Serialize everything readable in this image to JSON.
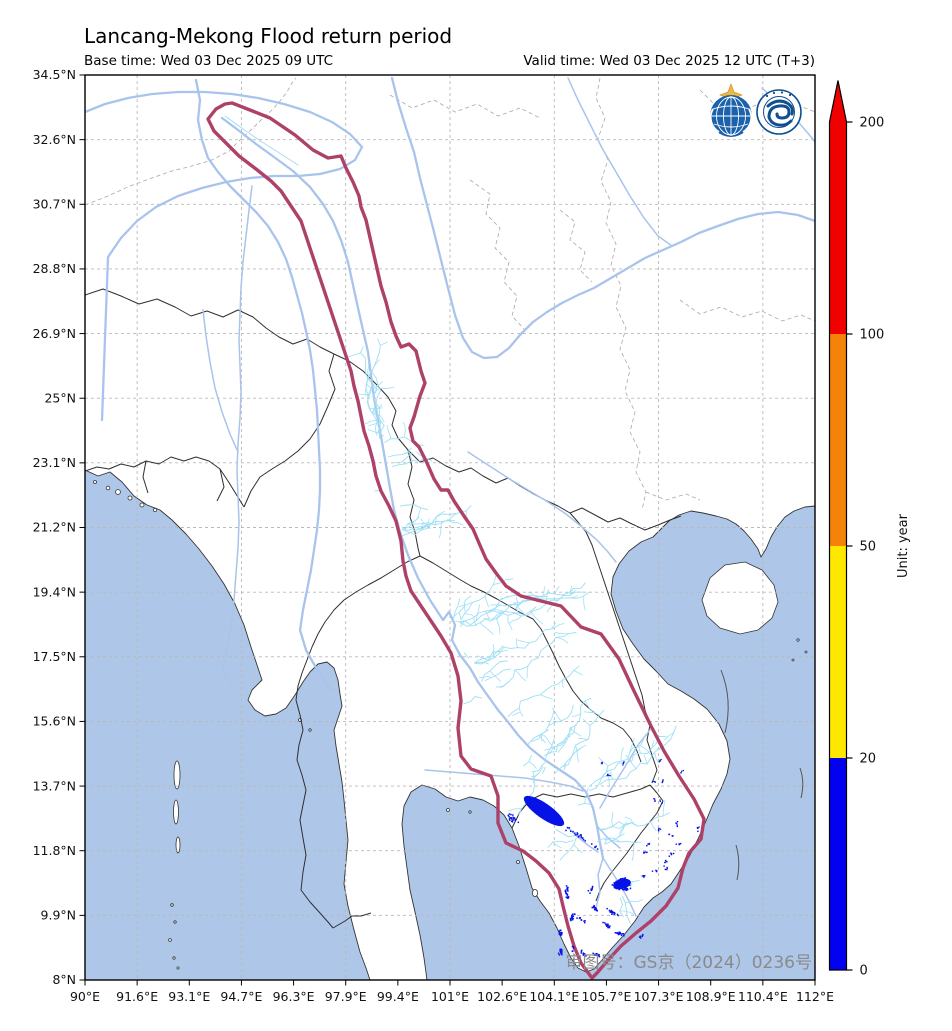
{
  "header": {
    "title": "Lancang-Mekong Flood return period",
    "base_time": "Base time: Wed 03 Dec 2025 09 UTC",
    "valid_time": "Valid time: Wed 03 Dec 2025 12 UTC (T+3)"
  },
  "axes": {
    "x_tick_labels": [
      "90°E",
      "91.6°E",
      "93.1°E",
      "94.7°E",
      "96.3°E",
      "97.9°E",
      "99.4°E",
      "101°E",
      "102.6°E",
      "104.1°E",
      "105.7°E",
      "107.3°E",
      "108.9°E",
      "110.4°E",
      "112°E"
    ],
    "y_tick_labels": [
      "34.5°N",
      "32.6°N",
      "30.7°N",
      "28.8°N",
      "26.9°N",
      "25°N",
      "23.1°N",
      "21.2°N",
      "19.4°N",
      "17.5°N",
      "15.6°N",
      "13.7°N",
      "11.8°N",
      "9.9°N",
      "8°N"
    ]
  },
  "colorbar": {
    "unit_label": "Unit: year",
    "tick_labels": [
      "0",
      "20",
      "50",
      "100",
      "200"
    ],
    "segment_bounds": [
      0,
      20,
      50,
      100,
      200
    ],
    "segment_colors": [
      "#0202f2",
      "#ffe800",
      "#f5820a",
      "#f10000"
    ],
    "extend_above_color": "#f10000"
  },
  "annotations": {
    "approval_number": "审图号：GS京（2024）0236号"
  },
  "icons": [
    "wmo-logo",
    "cma-logo"
  ],
  "colors": {
    "sea": "#aec7e8",
    "land": "#ffffff",
    "basin_outline": "#ae4168",
    "river_major": "#a9c4ec",
    "river_minor": "#9edff5",
    "flood": "#0713e6",
    "grid": "#b9b9b9",
    "country_border": "#2f2f2f",
    "province_border": "#a8a8a8",
    "coastline": "#333333",
    "approval_text": "#8a8a8a"
  }
}
